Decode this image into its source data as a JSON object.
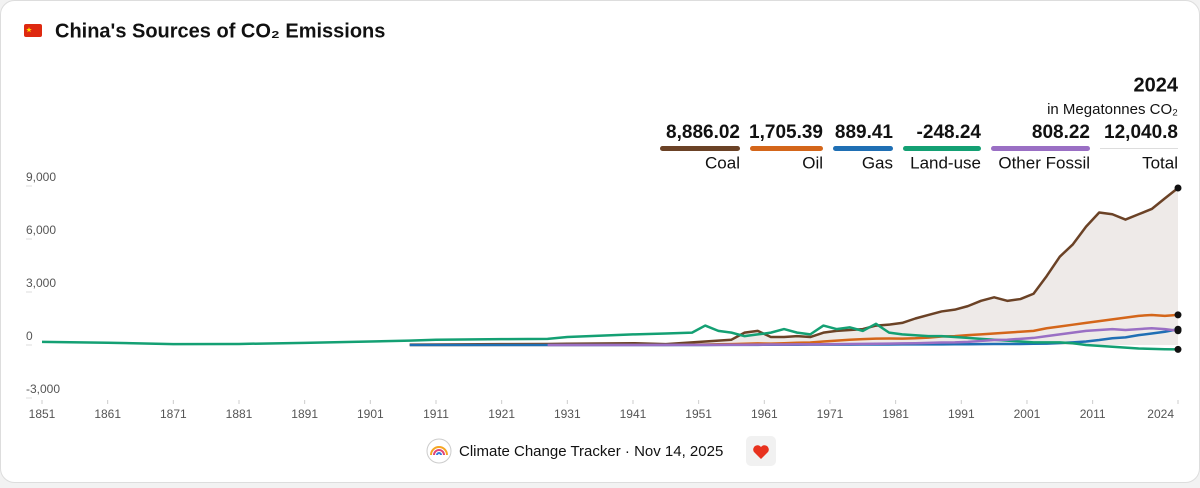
{
  "chart_data": {
    "type": "line",
    "title": "China's Sources of CO₂ Emissions",
    "x": [
      1851,
      1861,
      1871,
      1881,
      1891,
      1901,
      1907,
      1911,
      1921,
      1928,
      1931,
      1941,
      1946,
      1950,
      1952,
      1954,
      1956,
      1958,
      1960,
      1962,
      1964,
      1966,
      1968,
      1970,
      1972,
      1974,
      1976,
      1978,
      1980,
      1982,
      1984,
      1986,
      1988,
      1990,
      1992,
      1994,
      1996,
      1998,
      2000,
      2002,
      2004,
      2006,
      2008,
      2010,
      2012,
      2014,
      2016,
      2018,
      2020,
      2022,
      2024
    ],
    "series": [
      {
        "name": "Coal",
        "color": "#6b4226",
        "values": [
          null,
          null,
          null,
          null,
          null,
          null,
          20,
          30,
          50,
          60,
          70,
          100,
          50,
          150,
          200,
          250,
          300,
          700,
          800,
          450,
          450,
          500,
          450,
          700,
          800,
          850,
          900,
          1100,
          1150,
          1250,
          1500,
          1700,
          1900,
          2000,
          2200,
          2500,
          2700,
          2500,
          2600,
          2900,
          3900,
          5000,
          5700,
          6700,
          7500,
          7400,
          7100,
          7400,
          7700,
          8300,
          8886.02
        ]
      },
      {
        "name": "Oil",
        "color": "#d4661a",
        "values": [
          null,
          null,
          null,
          null,
          null,
          null,
          1,
          2,
          5,
          8,
          10,
          15,
          10,
          20,
          30,
          40,
          50,
          70,
          90,
          80,
          100,
          130,
          140,
          200,
          250,
          300,
          330,
          360,
          370,
          360,
          380,
          420,
          480,
          500,
          560,
          600,
          650,
          700,
          750,
          800,
          950,
          1050,
          1150,
          1250,
          1350,
          1450,
          1550,
          1650,
          1700,
          1650,
          1705.39
        ]
      },
      {
        "name": "Gas",
        "color": "#1f6fb4",
        "values": [
          null,
          null,
          null,
          null,
          null,
          null,
          0,
          0,
          0,
          0,
          0,
          0,
          0,
          0,
          2,
          4,
          6,
          8,
          10,
          12,
          14,
          16,
          18,
          20,
          22,
          24,
          26,
          28,
          30,
          32,
          34,
          36,
          38,
          40,
          45,
          50,
          55,
          58,
          60,
          70,
          80,
          110,
          150,
          200,
          280,
          380,
          430,
          560,
          650,
          750,
          889.41
        ]
      },
      {
        "name": "Land-use",
        "color": "#14a073",
        "values": [
          180,
          130,
          50,
          60,
          120,
          200,
          250,
          300,
          330,
          350,
          450,
          600,
          650,
          700,
          1100,
          800,
          700,
          500,
          600,
          700,
          900,
          700,
          600,
          1100,
          900,
          1000,
          800,
          1200,
          700,
          600,
          550,
          500,
          500,
          450,
          400,
          350,
          300,
          250,
          200,
          150,
          150,
          150,
          100,
          0,
          -50,
          -100,
          -150,
          -200,
          -220,
          -240,
          -248.24
        ]
      },
      {
        "name": "Other Fossil",
        "color": "#9a6fc4",
        "values": [
          null,
          null,
          null,
          null,
          null,
          null,
          null,
          null,
          null,
          1,
          2,
          3,
          4,
          5,
          8,
          10,
          12,
          15,
          20,
          25,
          30,
          33,
          36,
          40,
          50,
          60,
          65,
          70,
          80,
          90,
          100,
          120,
          140,
          150,
          180,
          230,
          280,
          300,
          350,
          400,
          500,
          600,
          700,
          800,
          850,
          900,
          850,
          900,
          950,
          900,
          808.22
        ]
      }
    ],
    "readout": {
      "year": "2024",
      "unit": "in Megatonnes CO₂",
      "labels": [
        "8,886.02",
        "1,705.39",
        "889.41",
        "-248.24",
        "808.22"
      ],
      "total_label": "12,040.8",
      "total_name": "Total"
    },
    "xlim": [
      1851,
      2024
    ],
    "xticks": [
      1851,
      1861,
      1871,
      1881,
      1891,
      1901,
      1911,
      1921,
      1931,
      1941,
      1951,
      1961,
      1971,
      1981,
      1991,
      2001,
      2011,
      2024
    ],
    "ylim": [
      -3000,
      9000
    ],
    "yticks": [
      {
        "value": 9000,
        "label": "9,000"
      },
      {
        "value": 6000,
        "label": "6,000"
      },
      {
        "value": 3000,
        "label": "3,000"
      },
      0,
      {
        "value": -3000,
        "label": "-3,000"
      }
    ],
    "area_color": "#eeeae8"
  },
  "footer": "Climate Change Tracker · Nov 14, 2025"
}
